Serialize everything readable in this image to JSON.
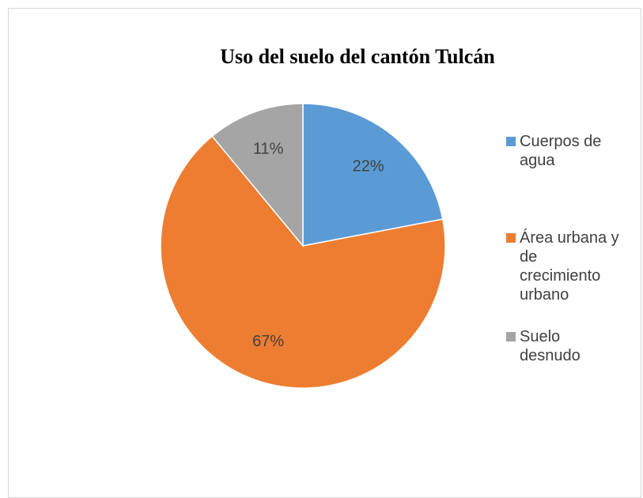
{
  "chart_data": {
    "type": "pie",
    "title": "Uso del suelo del cantón Tulcán",
    "categories": [
      "Cuerpos de agua",
      "Área urbana y de crecimiento urbano",
      "Suelo desnudo"
    ],
    "values": [
      22,
      67,
      11
    ],
    "value_labels": [
      "22%",
      "67%",
      "11%"
    ],
    "colors": [
      "#5b9bd5",
      "#ed7d31",
      "#a5a5a5"
    ],
    "legend": "right"
  }
}
